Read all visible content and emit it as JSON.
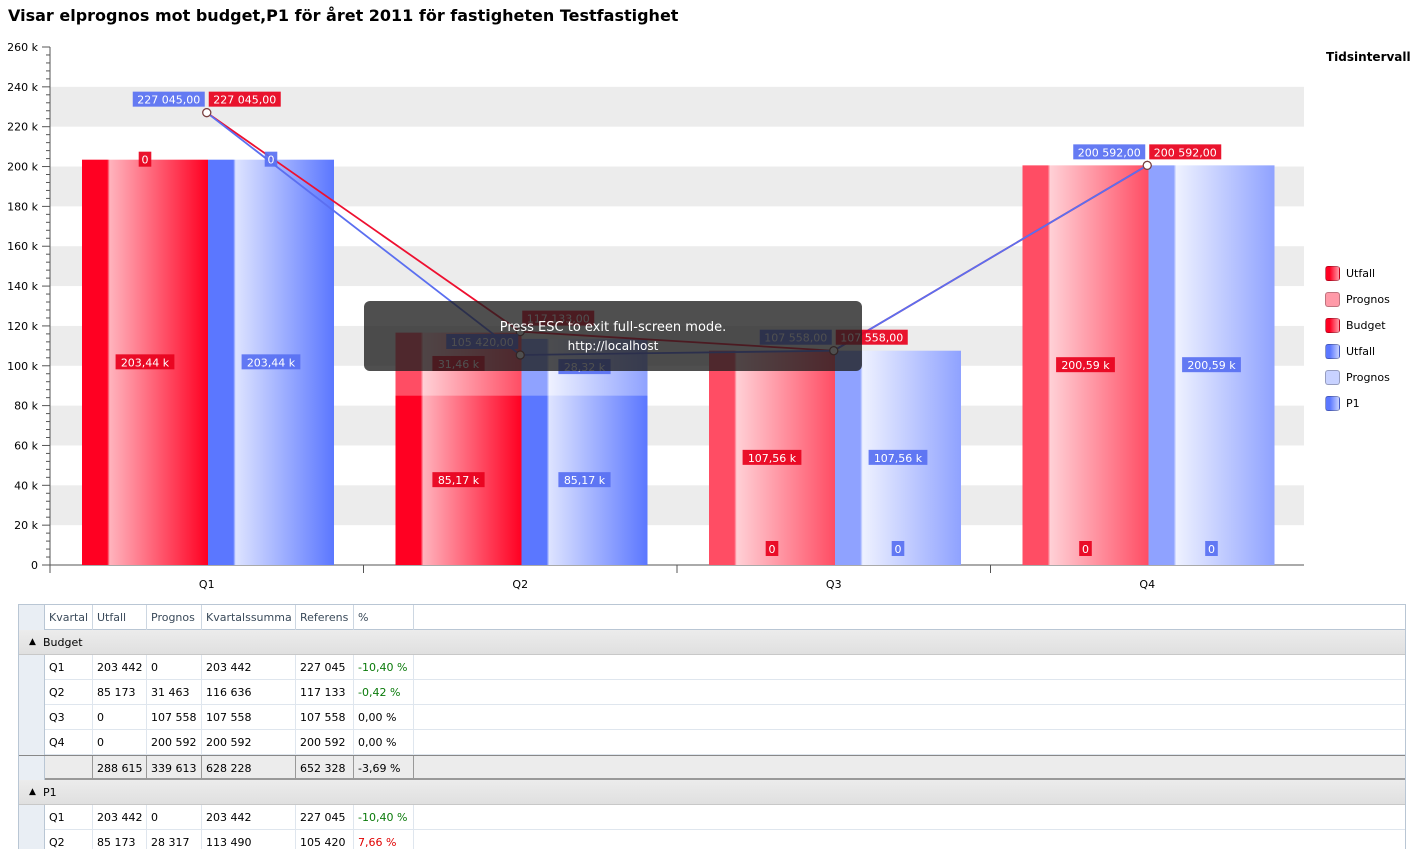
{
  "title": "Visar elprognos mot budget,P1 för året 2011 för fastigheten Testfastighet",
  "legend_title": "Tidsintervall",
  "fullscreen": {
    "message": "Press ESC to exit full-screen mode.",
    "url": "http://localhost"
  },
  "colors": {
    "red": "#ff0022",
    "red_light": "#ff9aa8",
    "blue": "#5b77ff",
    "blue_light": "#c8d2ff"
  },
  "chart_data": {
    "type": "bar",
    "categories": [
      "Q1",
      "Q2",
      "Q3",
      "Q4"
    ],
    "ylim": [
      0,
      260000
    ],
    "yticks": [
      "0",
      "20 k",
      "40 k",
      "60 k",
      "80 k",
      "100 k",
      "120 k",
      "140 k",
      "160 k",
      "180 k",
      "200 k",
      "220 k",
      "240 k",
      "260 k"
    ],
    "legend": [
      {
        "label": "Utfall",
        "group": "red",
        "shade": "dark"
      },
      {
        "label": "Prognos",
        "group": "red",
        "shade": "light"
      },
      {
        "label": "Budget",
        "group": "red",
        "shade": "line"
      },
      {
        "label": "Utfall",
        "group": "blue",
        "shade": "dark"
      },
      {
        "label": "Prognos",
        "group": "blue",
        "shade": "light"
      },
      {
        "label": "P1",
        "group": "blue",
        "shade": "line"
      }
    ],
    "stacks": [
      {
        "group": "red",
        "utfall": [
          203442,
          85173,
          0,
          0
        ],
        "prognos": [
          0,
          31463,
          107558,
          200592
        ],
        "utfall_labels": [
          "203,44 k",
          "85,17 k",
          "0",
          "0"
        ],
        "prognos_labels": [
          "0",
          "31,46 k",
          "107,56 k",
          "200,59 k"
        ]
      },
      {
        "group": "blue",
        "utfall": [
          203442,
          85173,
          0,
          0
        ],
        "prognos": [
          0,
          28317,
          107558,
          200592
        ],
        "utfall_labels": [
          "203,44 k",
          "85,17 k",
          "0",
          "0"
        ],
        "prognos_labels": [
          "0",
          "28,32 k",
          "107,56 k",
          "200,59 k"
        ]
      }
    ],
    "lines": [
      {
        "name": "Budget",
        "group": "red",
        "values": [
          227045,
          117133,
          107558,
          200592
        ],
        "labels": [
          "227 045,00",
          "117 133,00",
          "107 558,00",
          "200 592,00"
        ]
      },
      {
        "name": "P1",
        "group": "blue",
        "values": [
          227045,
          105420,
          107558,
          200592
        ],
        "labels": [
          "227 045,00",
          "105 420,00",
          "107 558,00",
          "200 592,00"
        ]
      }
    ]
  },
  "grid": {
    "columns": [
      "Kvartal",
      "Utfall",
      "Prognos",
      "Kvartalssumma",
      "Referens",
      "%"
    ],
    "groups": [
      {
        "name": "Budget",
        "rows": [
          [
            "Q1",
            "203 442",
            "0",
            "203 442",
            "227 045",
            "-10,40 %"
          ],
          [
            "Q2",
            "85 173",
            "31 463",
            "116 636",
            "117 133",
            "-0,42 %"
          ],
          [
            "Q3",
            "0",
            "107 558",
            "107 558",
            "107 558",
            "0,00 %"
          ],
          [
            "Q4",
            "0",
            "200 592",
            "200 592",
            "200 592",
            "0,00 %"
          ]
        ],
        "total": [
          "",
          "288 615",
          "339 613",
          "628 228",
          "652 328",
          "-3,69 %"
        ]
      },
      {
        "name": "P1",
        "rows": [
          [
            "Q1",
            "203 442",
            "0",
            "203 442",
            "227 045",
            "-10,40 %"
          ],
          [
            "Q2",
            "85 173",
            "28 317",
            "113 490",
            "105 420",
            "7,66 %"
          ]
        ]
      }
    ]
  }
}
